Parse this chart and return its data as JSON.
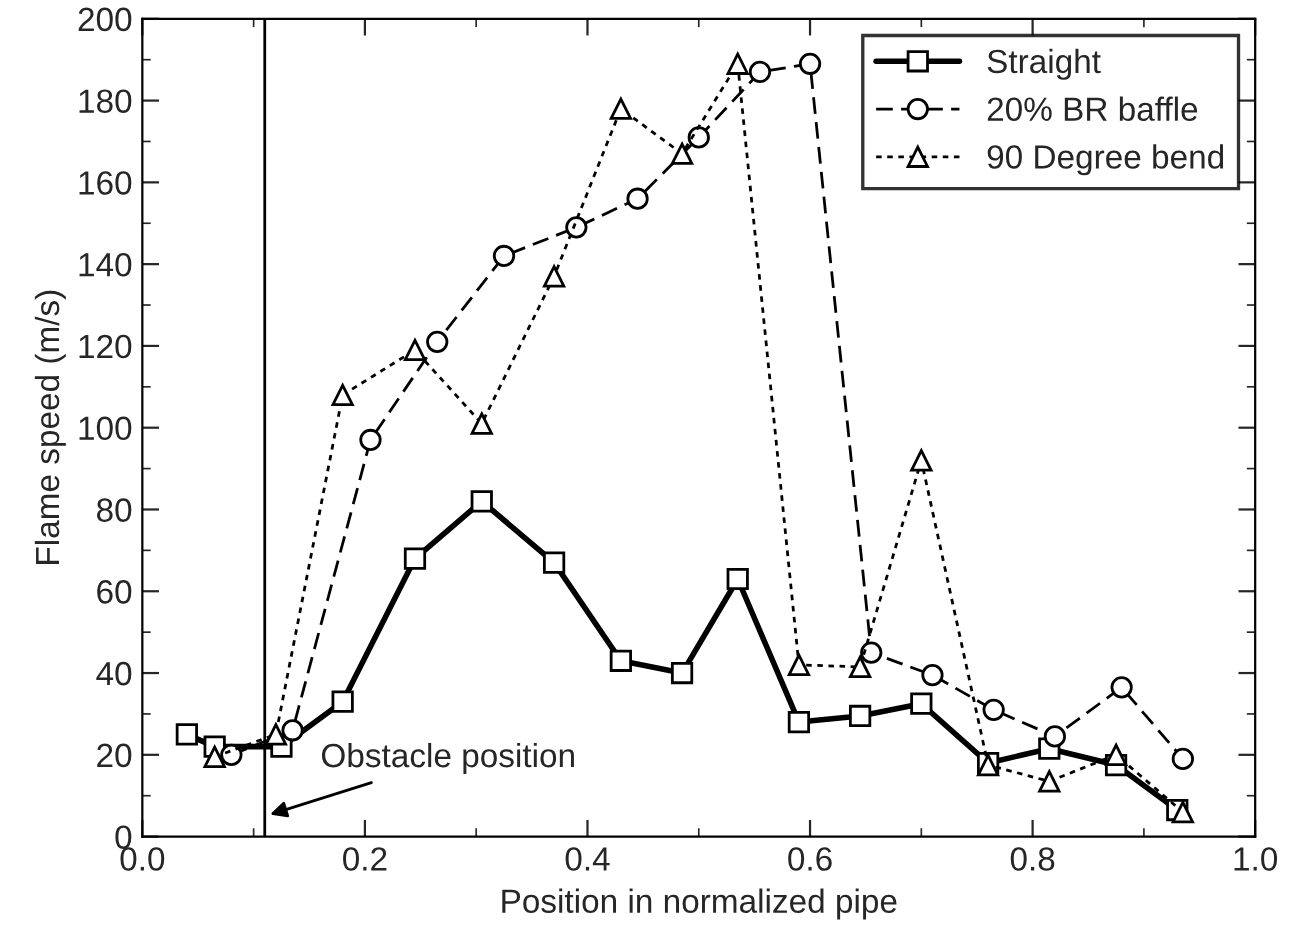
{
  "chart_data": {
    "type": "line",
    "xlabel": "Position in normalized pipe",
    "ylabel": "Flame speed (m/s)",
    "xlim": [
      0.0,
      1.0
    ],
    "xticks": [
      {
        "value": 0,
        "label": "0.0"
      },
      {
        "value": 0.2,
        "label": "0.2"
      },
      {
        "value": 0.4,
        "label": "0.4"
      },
      {
        "value": 0.6,
        "label": "0.6"
      },
      {
        "value": 0.8,
        "label": "0.8"
      },
      {
        "value": 1.0,
        "label": "1.0"
      }
    ],
    "ylim": [
      0,
      200
    ],
    "yticks": [
      0,
      20,
      40,
      60,
      80,
      100,
      120,
      140,
      160,
      180,
      200
    ],
    "grid": false,
    "legend": "top right",
    "series": [
      {
        "name": "Straight",
        "color": "#000000",
        "marker": "square",
        "line_style": "solid",
        "x": [
          0.04,
          0.065,
          0.125,
          0.18,
          0.245,
          0.305,
          0.37,
          0.43,
          0.485,
          0.535,
          0.59,
          0.645,
          0.7,
          0.76,
          0.815,
          0.875,
          0.93
        ],
        "values": [
          25,
          22,
          22,
          33,
          68,
          82,
          67,
          43,
          40,
          63,
          28,
          29.5,
          32.5,
          18,
          21.5,
          17.5,
          6.5
        ]
      },
      {
        "name": "20% BR baffle",
        "color": "#000000",
        "marker": "circle",
        "line_style": "dashed",
        "x": [
          0.08,
          0.135,
          0.205,
          0.265,
          0.325,
          0.39,
          0.445,
          0.5,
          0.555,
          0.6,
          0.655,
          0.71,
          0.765,
          0.82,
          0.88,
          0.935
        ],
        "values": [
          20,
          26,
          97,
          121,
          142,
          149,
          156,
          171,
          187,
          189,
          45,
          39.5,
          31,
          24.5,
          36.5,
          19
        ]
      },
      {
        "name": "90 Degree bend",
        "color": "#000000",
        "marker": "triangle",
        "line_style": "dotted",
        "x": [
          0.065,
          0.12,
          0.18,
          0.245,
          0.305,
          0.37,
          0.43,
          0.485,
          0.535,
          0.59,
          0.645,
          0.7,
          0.76,
          0.815,
          0.875,
          0.935
        ],
        "values": [
          19.5,
          25,
          108,
          119,
          101,
          137,
          178,
          167,
          189,
          42,
          41.5,
          92,
          17.5,
          13.5,
          20,
          6
        ]
      }
    ],
    "ref_lines": [
      {
        "axis": "x",
        "value": 0.11,
        "color": "#000000",
        "line_style": "solid"
      }
    ],
    "annotations": [
      {
        "text": "Obstacle position",
        "x": 0.11,
        "y": 5
      }
    ]
  }
}
